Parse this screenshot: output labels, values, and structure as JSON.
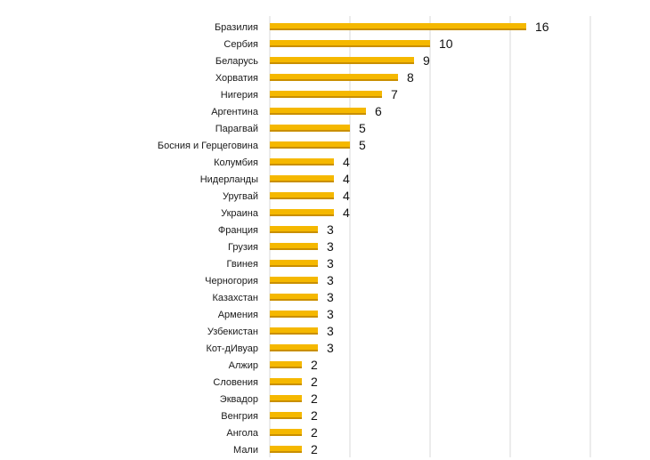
{
  "chart_data": {
    "type": "bar",
    "orientation": "horizontal",
    "title": "",
    "xlabel": "",
    "ylabel": "",
    "xlim": [
      0,
      20
    ],
    "grid": "vertical",
    "legend": "none",
    "bar_color": "#F5B800",
    "bar_shade_color": "#C98F00",
    "grid_color": "#d9d9d9",
    "categories": [
      "Бразилия",
      "Сербия",
      "Беларусь",
      "Хорватия",
      "Нигерия",
      "Аргентина",
      "Парагвай",
      "Босния и Герцеговина",
      "Колумбия",
      "Нидерланды",
      "Уругвай",
      "Украина",
      "Франция",
      "Грузия",
      "Гвинея",
      "Черногория",
      "Казахстан",
      "Армения",
      "Узбекистан",
      "Кот-дИвуар",
      "Алжир",
      "Словения",
      "Эквадор",
      "Венгрия",
      "Ангола",
      "Мали"
    ],
    "values": [
      16,
      10,
      9,
      8,
      7,
      6,
      5,
      5,
      4,
      4,
      4,
      4,
      3,
      3,
      3,
      3,
      3,
      3,
      3,
      3,
      2,
      2,
      2,
      2,
      2,
      2
    ],
    "data_labels": [
      "16",
      "10",
      "9",
      "8",
      "7",
      "6",
      "5",
      "5",
      "4",
      "4",
      "4",
      "4",
      "3",
      "3",
      "3",
      "3",
      "3",
      "3",
      "3",
      "3",
      "2",
      "2",
      "2",
      "2",
      "2",
      "2"
    ]
  }
}
